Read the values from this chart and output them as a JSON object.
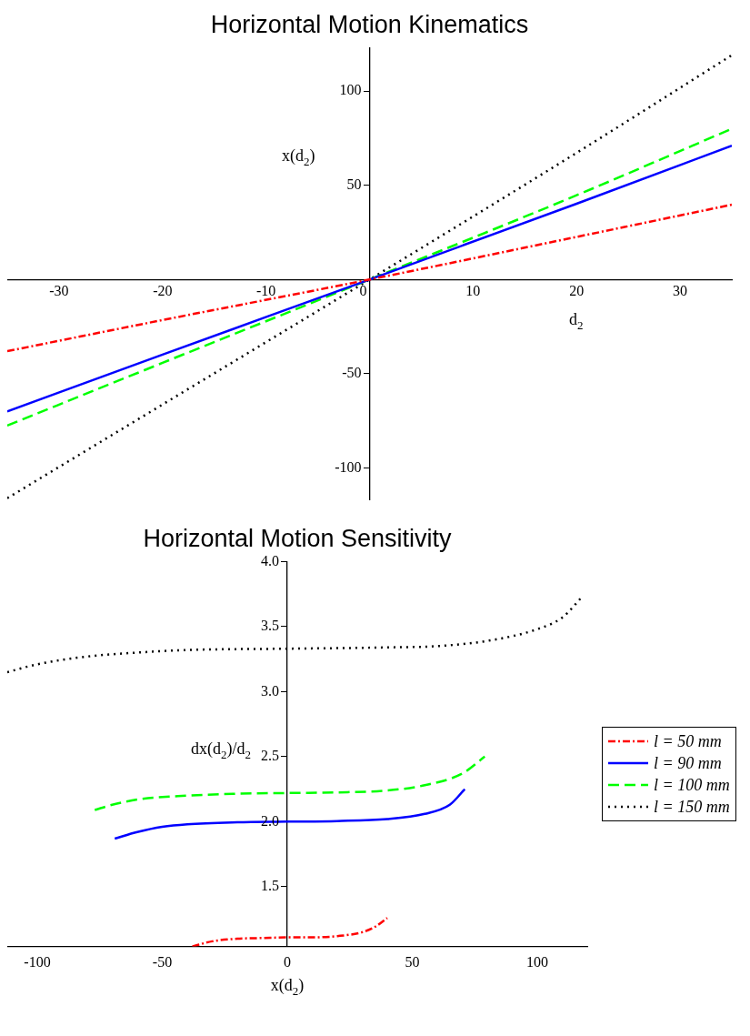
{
  "chart_data": [
    {
      "type": "line",
      "title": "Horizontal Motion Kinematics",
      "xlabel": "d$_{2}$",
      "ylabel": "x(d$_{2}$)",
      "xlim": [
        -35,
        35
      ],
      "ylim": [
        -117,
        123
      ],
      "xticks": [
        -30,
        -20,
        -10,
        0,
        10,
        20,
        30
      ],
      "yticks": [
        -100,
        -50,
        50,
        100
      ],
      "grid": false,
      "legend": false,
      "marker": "none",
      "series": [
        {
          "color": "#ff0000",
          "line_style": "dashdot",
          "x": [
            -35,
            -20,
            0,
            20,
            35
          ],
          "values": [
            -38,
            -21.5,
            0,
            22.6,
            39.7
          ]
        },
        {
          "color": "#0000ff",
          "line_style": "solid",
          "x": [
            -35,
            -20,
            0,
            20,
            35
          ],
          "values": [
            -70,
            -39.8,
            0,
            40.2,
            71
          ]
        },
        {
          "color": "#00ff00",
          "line_style": "dashed",
          "x": [
            -35,
            -20,
            0,
            20,
            35
          ],
          "values": [
            -77.5,
            -44.2,
            0,
            44.7,
            80
          ]
        },
        {
          "color": "#000000",
          "line_style": "dotted",
          "x": [
            -35,
            -20,
            0,
            20,
            35
          ],
          "values": [
            -116,
            -66.3,
            0,
            67.2,
            119
          ]
        }
      ]
    },
    {
      "type": "line",
      "title": "Horizontal Motion Sensitivity",
      "xlabel": "x(d$_{2}$)",
      "ylabel": "dx(d$_{2}$)/d$_{2}$",
      "xlim": [
        -112,
        120
      ],
      "ylim": [
        1.04,
        4.0
      ],
      "xticks": [
        -100,
        -50,
        0,
        50,
        100
      ],
      "yticks": [
        1.5,
        {
          "value": 2,
          "label": "2.0"
        },
        2.5,
        {
          "value": 3,
          "label": "3.0"
        },
        3.5,
        {
          "value": 4,
          "label": "4.0"
        }
      ],
      "grid": false,
      "legend": "right",
      "marker": "none",
      "series": [
        {
          "name": "l = 50 mm",
          "color": "#ff0000",
          "line_style": "dashdot",
          "x": [
            -38,
            -30,
            -20,
            -10,
            0,
            10,
            20,
            30,
            35,
            40
          ],
          "values": [
            1.04,
            1.08,
            1.1,
            1.105,
            1.11,
            1.11,
            1.12,
            1.15,
            1.19,
            1.26
          ]
        },
        {
          "name": "l = 90 mm",
          "color": "#0000ff",
          "line_style": "solid",
          "x": [
            -69,
            -60,
            -50,
            -40,
            -20,
            0,
            20,
            40,
            55,
            65,
            71
          ],
          "values": [
            1.87,
            1.92,
            1.96,
            1.98,
            1.995,
            2.0,
            2.005,
            2.02,
            2.06,
            2.13,
            2.25
          ]
        },
        {
          "name": "l = 100 mm",
          "color": "#00ff00",
          "line_style": "dashed",
          "x": [
            -77,
            -70,
            -60,
            -40,
            -20,
            0,
            20,
            40,
            55,
            70,
            79
          ],
          "values": [
            2.09,
            2.13,
            2.17,
            2.2,
            2.215,
            2.22,
            2.225,
            2.24,
            2.28,
            2.37,
            2.5
          ]
        },
        {
          "name": "l = 150 mm",
          "color": "#000000",
          "line_style": "dotted",
          "x": [
            -112,
            -100,
            -80,
            -60,
            -40,
            0,
            40,
            60,
            80,
            100,
            110,
            118
          ],
          "values": [
            3.15,
            3.21,
            3.27,
            3.3,
            3.32,
            3.33,
            3.34,
            3.35,
            3.39,
            3.48,
            3.57,
            3.73
          ]
        }
      ]
    }
  ]
}
